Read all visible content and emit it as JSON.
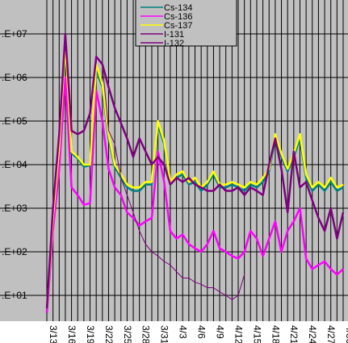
{
  "chart_data": {
    "type": "line",
    "title": "",
    "xlabel": "",
    "ylabel": "",
    "y_scale": "log",
    "ylim": [
      3,
      100000000
    ],
    "y_ticks": [
      {
        "value": 10,
        "label": ".E+01"
      },
      {
        "value": 100,
        "label": ".E+02"
      },
      {
        "value": 1000,
        "label": ".E+03"
      },
      {
        "value": 10000,
        "label": ".E+04"
      },
      {
        "value": 100000,
        "label": ".E+05"
      },
      {
        "value": 1000000,
        "label": ".E+06"
      },
      {
        "value": 10000000,
        "label": ".E+07"
      }
    ],
    "x_ticks": [
      "3/13",
      "3/16",
      "3/19",
      "3/22",
      "3/25",
      "3/28",
      "3/31",
      "4/3",
      "4/6",
      "4/9",
      "4/12",
      "4/15",
      "4/18",
      "4/21",
      "4/24",
      "4/27",
      "4/30"
    ],
    "grid": true,
    "legend_position": "top-right",
    "background": "#c0c0c0",
    "x_day_range": [
      0,
      48
    ],
    "series": [
      {
        "name": "Cs-134",
        "color": "#008080",
        "points": [
          [
            0,
            4
          ],
          [
            1,
            500
          ],
          [
            2,
            20000
          ],
          [
            3,
            5000000
          ],
          [
            4,
            18000
          ],
          [
            5,
            14000
          ],
          [
            6,
            9000
          ],
          [
            7,
            9500
          ],
          [
            8,
            1500000
          ],
          [
            9,
            600000
          ],
          [
            10,
            40000
          ],
          [
            11,
            9000
          ],
          [
            12,
            5000
          ],
          [
            13,
            3000
          ],
          [
            14,
            2500
          ],
          [
            15,
            2500
          ],
          [
            16,
            3500
          ],
          [
            17,
            3500
          ],
          [
            18,
            80000
          ],
          [
            19,
            30000
          ],
          [
            20,
            3500
          ],
          [
            21,
            5000
          ],
          [
            22,
            6000
          ],
          [
            23,
            3500
          ],
          [
            24,
            4000
          ],
          [
            25,
            2500
          ],
          [
            26,
            3500
          ],
          [
            27,
            6000
          ],
          [
            28,
            3000
          ],
          [
            29,
            3000
          ],
          [
            30,
            3500
          ],
          [
            31,
            3000
          ],
          [
            32,
            2500
          ],
          [
            33,
            3500
          ],
          [
            34,
            3000
          ],
          [
            35,
            4000
          ],
          [
            36,
            7000
          ],
          [
            37,
            40000
          ],
          [
            38,
            15000
          ],
          [
            39,
            7000
          ],
          [
            40,
            15000
          ],
          [
            41,
            40000
          ],
          [
            42,
            5000
          ],
          [
            43,
            2500
          ],
          [
            44,
            3500
          ],
          [
            45,
            2500
          ],
          [
            46,
            4000
          ],
          [
            47,
            2500
          ],
          [
            48,
            3000
          ]
        ]
      },
      {
        "name": "Cs-136",
        "color": "#ff00ff",
        "points": [
          [
            0,
            4
          ],
          [
            1,
            300
          ],
          [
            2,
            8000
          ],
          [
            3,
            1000000
          ],
          [
            4,
            3000
          ],
          [
            5,
            2000
          ],
          [
            6,
            1200
          ],
          [
            7,
            1300
          ],
          [
            8,
            500000
          ],
          [
            9,
            100000
          ],
          [
            10,
            8000
          ],
          [
            11,
            3000
          ],
          [
            12,
            2000
          ],
          [
            13,
            800
          ],
          [
            14,
            600
          ],
          [
            15,
            400
          ],
          [
            16,
            500
          ],
          [
            17,
            600
          ],
          [
            18,
            20000
          ],
          [
            19,
            4000
          ],
          [
            20,
            300
          ],
          [
            21,
            200
          ],
          [
            22,
            250
          ],
          [
            23,
            150
          ],
          [
            24,
            120
          ],
          [
            25,
            100
          ],
          [
            26,
            150
          ],
          [
            27,
            300
          ],
          [
            28,
            120
          ],
          [
            29,
            100
          ],
          [
            30,
            80
          ],
          [
            31,
            70
          ],
          [
            32,
            100
          ],
          [
            33,
            300
          ],
          [
            34,
            200
          ],
          [
            35,
            80
          ],
          [
            36,
            200
          ],
          [
            37,
            500
          ],
          [
            38,
            100
          ],
          [
            39,
            300
          ],
          [
            40,
            500
          ],
          [
            41,
            1000
          ],
          [
            42,
            70
          ],
          [
            43,
            40
          ],
          [
            44,
            50
          ],
          [
            45,
            60
          ],
          [
            46,
            40
          ],
          [
            47,
            30
          ],
          [
            48,
            40
          ]
        ]
      },
      {
        "name": "Cs-137",
        "color": "#ffff00",
        "points": [
          [
            0,
            5
          ],
          [
            1,
            600
          ],
          [
            2,
            25000
          ],
          [
            3,
            6000000
          ],
          [
            4,
            20000
          ],
          [
            5,
            15000
          ],
          [
            6,
            10000
          ],
          [
            7,
            10000
          ],
          [
            8,
            2000000
          ],
          [
            9,
            700000
          ],
          [
            10,
            50000
          ],
          [
            11,
            10000
          ],
          [
            12,
            6000
          ],
          [
            13,
            3500
          ],
          [
            14,
            3000
          ],
          [
            15,
            3000
          ],
          [
            16,
            4000
          ],
          [
            17,
            4000
          ],
          [
            18,
            100000
          ],
          [
            19,
            35000
          ],
          [
            20,
            4000
          ],
          [
            21,
            6000
          ],
          [
            22,
            7000
          ],
          [
            23,
            4000
          ],
          [
            24,
            5000
          ],
          [
            25,
            3000
          ],
          [
            26,
            4000
          ],
          [
            27,
            7000
          ],
          [
            28,
            3500
          ],
          [
            29,
            3500
          ],
          [
            30,
            4000
          ],
          [
            31,
            3500
          ],
          [
            32,
            3000
          ],
          [
            33,
            4000
          ],
          [
            34,
            3500
          ],
          [
            35,
            5000
          ],
          [
            36,
            8000
          ],
          [
            37,
            50000
          ],
          [
            38,
            18000
          ],
          [
            39,
            8000
          ],
          [
            40,
            18000
          ],
          [
            41,
            50000
          ],
          [
            42,
            6000
          ],
          [
            43,
            3000
          ],
          [
            44,
            4000
          ],
          [
            45,
            3000
          ],
          [
            46,
            5000
          ],
          [
            47,
            3000
          ],
          [
            48,
            3500
          ]
        ]
      },
      {
        "name": "I-131",
        "color": "#800080",
        "points": [
          [
            0,
            5
          ],
          [
            1,
            1000
          ],
          [
            2,
            50000
          ],
          [
            3,
            10000000
          ],
          [
            4,
            60000
          ],
          [
            5,
            50000
          ],
          [
            6,
            60000
          ],
          [
            7,
            150000
          ],
          [
            8,
            3000000
          ],
          [
            9,
            2000000
          ],
          [
            10,
            600000
          ],
          [
            11,
            200000
          ],
          [
            12,
            90000
          ],
          [
            13,
            40000
          ],
          [
            14,
            15000
          ],
          [
            15,
            40000
          ],
          [
            16,
            20000
          ],
          [
            17,
            10000
          ],
          [
            18,
            15000
          ],
          [
            19,
            10000
          ],
          [
            20,
            3500
          ],
          [
            21,
            5000
          ],
          [
            22,
            4000
          ],
          [
            23,
            5000
          ],
          [
            24,
            3500
          ],
          [
            25,
            3000
          ],
          [
            26,
            2500
          ],
          [
            27,
            2500
          ],
          [
            28,
            3500
          ],
          [
            29,
            2500
          ],
          [
            30,
            2500
          ],
          [
            31,
            3000
          ],
          [
            32,
            2000
          ],
          [
            33,
            3000
          ],
          [
            34,
            2500
          ],
          [
            35,
            2000
          ],
          [
            36,
            10000
          ],
          [
            37,
            40000
          ],
          [
            38,
            8000
          ],
          [
            39,
            800
          ],
          [
            40,
            20000
          ],
          [
            41,
            3000
          ],
          [
            42,
            4000
          ],
          [
            43,
            1500
          ],
          [
            44,
            600
          ],
          [
            45,
            300
          ],
          [
            46,
            1000
          ],
          [
            47,
            200
          ],
          [
            48,
            800
          ]
        ]
      },
      {
        "name": "I-132",
        "color": "#800080",
        "points": [
          [
            9,
            2000000
          ],
          [
            10,
            60000
          ],
          [
            11,
            30000
          ],
          [
            12,
            5000
          ],
          [
            13,
            2000
          ],
          [
            14,
            800
          ],
          [
            15,
            300
          ],
          [
            16,
            150
          ],
          [
            17,
            100
          ],
          [
            18,
            80
          ],
          [
            19,
            60
          ],
          [
            20,
            50
          ],
          [
            21,
            35
          ],
          [
            22,
            25
          ],
          [
            23,
            25
          ],
          [
            24,
            20
          ],
          [
            25,
            18
          ],
          [
            26,
            15
          ],
          [
            27,
            15
          ],
          [
            28,
            12
          ],
          [
            29,
            10
          ],
          [
            30,
            8
          ],
          [
            31,
            10
          ],
          [
            32,
            30
          ]
        ]
      }
    ]
  }
}
